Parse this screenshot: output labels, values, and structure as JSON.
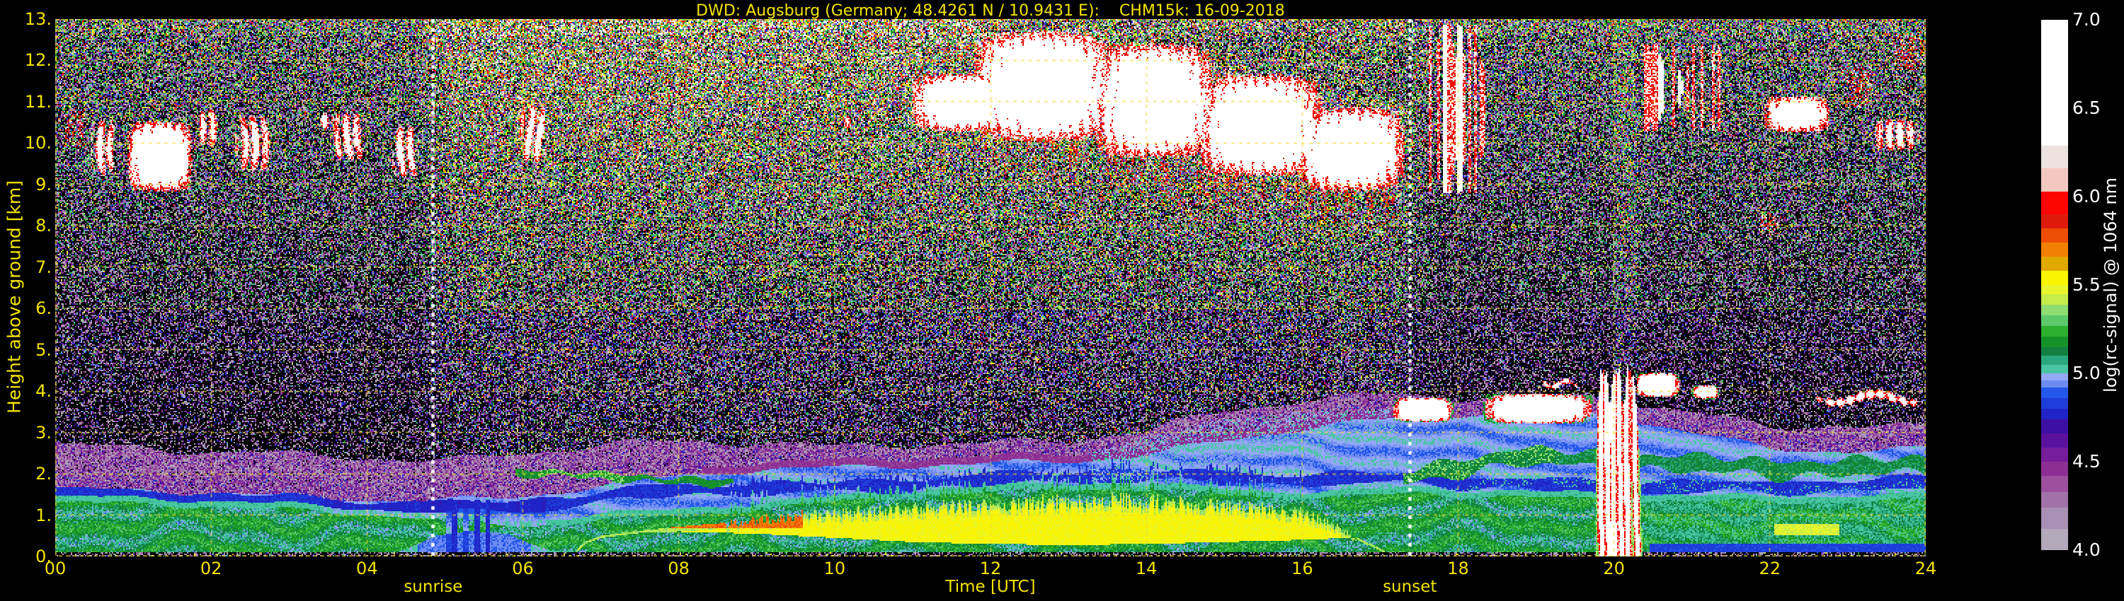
{
  "title": "DWD: Augsburg (Germany; 48.4261 N / 10.9431 E):    CHM15k: 16-09-2018",
  "style": {
    "background": "#000000",
    "label_color": "#f4e400",
    "grid_color": "rgba(238,220,50,0.85)",
    "event_line_color": "#ffffff",
    "colorbar_text_color": "#ffffff"
  },
  "chart_data": {
    "type": "heatmap",
    "title": "DWD: Augsburg (Germany; 48.4261 N / 10.9431 E):    CHM15k: 16-09-2018",
    "x": {
      "label": "Time [UTC]",
      "range": [
        0,
        24
      ],
      "ticks": [
        0,
        2,
        4,
        6,
        8,
        10,
        12,
        14,
        16,
        18,
        20,
        22,
        24
      ],
      "tick_labels": [
        "00",
        "02",
        "04",
        "06",
        "08",
        "10",
        "12",
        "14",
        "16",
        "18",
        "20",
        "22",
        "24"
      ]
    },
    "y": {
      "label": "Height above ground [km]",
      "range": [
        0,
        13
      ],
      "ticks": [
        13,
        12,
        11,
        10,
        9,
        8,
        7,
        6,
        5,
        4,
        3,
        2,
        1,
        0
      ],
      "tick_labels": [
        "13.",
        "12.",
        "11.",
        "10.",
        "9.",
        "8.",
        "7.",
        "6.",
        "5.",
        "4.",
        "3.",
        "2.",
        "1.",
        "0."
      ]
    },
    "colorbar": {
      "label": "log(rc-signal) @ 1064 nm",
      "range": [
        4.0,
        7.0
      ],
      "tick_labels": [
        "7.0",
        "6.5",
        "6.0",
        "5.5",
        "5.0",
        "4.5",
        "4.0"
      ],
      "under_color": "#000000",
      "over_color": "#ffffff",
      "stops": [
        [
          4.0,
          "#b3a9bb"
        ],
        [
          4.12,
          "#a98fb4"
        ],
        [
          4.24,
          "#a172a8"
        ],
        [
          4.33,
          "#9d509d"
        ],
        [
          4.42,
          "#8c2e93"
        ],
        [
          4.5,
          "#771c9a"
        ],
        [
          4.58,
          "#5a129e"
        ],
        [
          4.66,
          "#3d10a3"
        ],
        [
          4.74,
          "#2023c5"
        ],
        [
          4.8,
          "#1e3ddb"
        ],
        [
          4.86,
          "#2458ea"
        ],
        [
          4.92,
          "#6e8cf2"
        ],
        [
          4.96,
          "#93a8f6"
        ],
        [
          5.0,
          "#49c5a2"
        ],
        [
          5.05,
          "#2aa87d"
        ],
        [
          5.1,
          "#128042"
        ],
        [
          5.15,
          "#169328"
        ],
        [
          5.21,
          "#2eb02f"
        ],
        [
          5.27,
          "#5cc96a"
        ],
        [
          5.33,
          "#8fdc71"
        ],
        [
          5.39,
          "#c4ec4a"
        ],
        [
          5.45,
          "#e9f52b"
        ],
        [
          5.5,
          "#f9f400"
        ],
        [
          5.58,
          "#dfa900"
        ],
        [
          5.66,
          "#f28000"
        ],
        [
          5.74,
          "#ee4d06"
        ],
        [
          5.82,
          "#dd1a0c"
        ],
        [
          5.9,
          "#fc0400"
        ],
        [
          6.03,
          "#f3c8c1"
        ],
        [
          6.16,
          "#ece2e0"
        ],
        [
          6.29,
          "#ffffff"
        ]
      ]
    },
    "events": {
      "sunrise": {
        "label": "sunrise",
        "time": 4.85
      },
      "sunset": {
        "label": "sunset",
        "time": 17.38
      }
    },
    "layers": {
      "green_top": [
        [
          0,
          1.3
        ],
        [
          1,
          1.28
        ],
        [
          2,
          1.22
        ],
        [
          3,
          1.12
        ],
        [
          4,
          1.02
        ],
        [
          4.6,
          0.95
        ],
        [
          5,
          0.88
        ],
        [
          5.5,
          0.8
        ],
        [
          6,
          0.72
        ],
        [
          6.5,
          0.8
        ],
        [
          7,
          0.9
        ],
        [
          8,
          1.0
        ],
        [
          9,
          1.15
        ],
        [
          10,
          1.3
        ],
        [
          11,
          1.45
        ],
        [
          12,
          1.55
        ],
        [
          13,
          1.62
        ],
        [
          13.5,
          1.65
        ],
        [
          14,
          1.6
        ],
        [
          15,
          1.5
        ],
        [
          16,
          1.42
        ],
        [
          16.8,
          1.45
        ],
        [
          17.5,
          1.55
        ],
        [
          18,
          1.48
        ],
        [
          19,
          1.42
        ],
        [
          20,
          1.38
        ],
        [
          21,
          1.35
        ],
        [
          22,
          1.3
        ],
        [
          23,
          1.35
        ],
        [
          24,
          1.35
        ]
      ],
      "green_bottom": [
        [
          0,
          0.1
        ],
        [
          4.4,
          0.1
        ],
        [
          4.9,
          0.5
        ],
        [
          5.3,
          0.62
        ],
        [
          5.8,
          0.55
        ],
        [
          6.1,
          0.3
        ],
        [
          6.4,
          0.12
        ],
        [
          24,
          0.1
        ]
      ],
      "yellow_top": [
        [
          6.6,
          0.0
        ],
        [
          6.8,
          0.35
        ],
        [
          7,
          0.5
        ],
        [
          7.5,
          0.62
        ],
        [
          8,
          0.72
        ],
        [
          8.5,
          0.8
        ],
        [
          9,
          0.9
        ],
        [
          9.5,
          1.0
        ],
        [
          10,
          1.1
        ],
        [
          11,
          1.2
        ],
        [
          12,
          1.3
        ],
        [
          13,
          1.38
        ],
        [
          13.5,
          1.42
        ],
        [
          14,
          1.38
        ],
        [
          15,
          1.3
        ],
        [
          15.5,
          1.22
        ],
        [
          16,
          1.1
        ],
        [
          16.4,
          0.8
        ],
        [
          16.7,
          0.45
        ],
        [
          17,
          0.2
        ],
        [
          17.2,
          0.0
        ]
      ],
      "yellow_bottom": [
        [
          6.6,
          0.5
        ],
        [
          7,
          0.55
        ],
        [
          8,
          0.6
        ],
        [
          9,
          0.55
        ],
        [
          10,
          0.45
        ],
        [
          11,
          0.35
        ],
        [
          12,
          0.3
        ],
        [
          13,
          0.28
        ],
        [
          14,
          0.3
        ],
        [
          15,
          0.35
        ],
        [
          16,
          0.4
        ],
        [
          16.6,
          0.45
        ],
        [
          17.2,
          0.5
        ]
      ],
      "blue_band_offset": [
        [
          0,
          0.22
        ],
        [
          4,
          0.2
        ],
        [
          5,
          0.3
        ],
        [
          6,
          0.5
        ],
        [
          7,
          0.55
        ],
        [
          8,
          0.6
        ],
        [
          9,
          0.5
        ],
        [
          10,
          0.35
        ],
        [
          11,
          0.3
        ],
        [
          12,
          0.3
        ],
        [
          13,
          0.3
        ],
        [
          14,
          0.35
        ],
        [
          15,
          0.4
        ],
        [
          16,
          0.45
        ],
        [
          17,
          0.4
        ],
        [
          18,
          0.35
        ],
        [
          19,
          0.3
        ],
        [
          20,
          0.3
        ],
        [
          21,
          0.35
        ],
        [
          22,
          0.35
        ],
        [
          23,
          0.4
        ],
        [
          24,
          0.4
        ]
      ],
      "haze_top": [
        [
          0,
          1.65
        ],
        [
          1,
          1.6
        ],
        [
          2,
          1.55
        ],
        [
          3,
          1.45
        ],
        [
          4,
          1.38
        ],
        [
          5,
          1.35
        ],
        [
          6,
          1.45
        ],
        [
          7,
          1.7
        ],
        [
          8,
          1.95
        ],
        [
          9,
          2.1
        ],
        [
          10,
          2.15
        ],
        [
          11,
          2.2
        ],
        [
          12,
          2.25
        ],
        [
          13,
          2.3
        ],
        [
          14,
          2.45
        ],
        [
          15,
          2.8
        ],
        [
          16,
          3.1
        ],
        [
          17,
          3.3
        ],
        [
          18,
          3.45
        ],
        [
          19,
          3.5
        ],
        [
          20,
          3.4
        ],
        [
          21,
          3.0
        ],
        [
          22,
          2.6
        ],
        [
          23,
          2.55
        ],
        [
          24,
          2.6
        ]
      ],
      "purple_top": [
        [
          0,
          2.7
        ],
        [
          2,
          2.55
        ],
        [
          4,
          2.4
        ],
        [
          5,
          2.3
        ],
        [
          6,
          2.5
        ],
        [
          7,
          2.7
        ],
        [
          8,
          2.8
        ],
        [
          9,
          2.75
        ],
        [
          10,
          2.65
        ],
        [
          11,
          2.7
        ],
        [
          12,
          2.75
        ],
        [
          13,
          2.8
        ],
        [
          14,
          3.05
        ],
        [
          15,
          3.5
        ],
        [
          16,
          3.8
        ],
        [
          17,
          3.9
        ],
        [
          18,
          3.85
        ],
        [
          19,
          3.9
        ],
        [
          20,
          3.8
        ],
        [
          21,
          3.5
        ],
        [
          22,
          3.1
        ],
        [
          23,
          3.2
        ],
        [
          24,
          3.1
        ]
      ],
      "upper_green_center": [
        [
          17.3,
          1.9
        ],
        [
          18,
          2.2
        ],
        [
          18.7,
          2.4
        ],
        [
          19.5,
          2.35
        ],
        [
          20.6,
          2.3
        ],
        [
          21,
          2.25
        ],
        [
          22,
          2.1
        ],
        [
          23,
          2.2
        ],
        [
          24,
          2.15
        ]
      ],
      "residual_green_line": [
        [
          5.9,
          2.0
        ],
        [
          6.3,
          2.02
        ],
        [
          6.8,
          1.98
        ],
        [
          7.3,
          1.9
        ],
        [
          7.8,
          1.85
        ],
        [
          8.3,
          1.8
        ],
        [
          8.7,
          1.78
        ]
      ],
      "elevated_plume_top": [
        [
          13.3,
          2.5
        ],
        [
          14,
          2.9
        ],
        [
          15,
          3.3
        ],
        [
          16,
          3.5
        ],
        [
          17.2,
          3.55
        ]
      ],
      "cloud_top_attenuation": [
        [
          11.9,
          12.4
        ],
        [
          13,
          12.5
        ],
        [
          14,
          12.2
        ],
        [
          15,
          11.6
        ],
        [
          16,
          11.2
        ],
        [
          17,
          10.8
        ],
        [
          17.4,
          10.6
        ]
      ],
      "cloud_base_virga": [
        [
          11.9,
          10.4
        ],
        [
          13,
          10.0
        ],
        [
          14,
          9.6
        ],
        [
          15,
          9.25
        ],
        [
          16,
          9.0
        ],
        [
          17.35,
          8.75
        ]
      ],
      "crimson_window": [
        8.3,
        17.5
      ],
      "orange_core": {
        "t": [
          7.6,
          9.6
        ],
        "h": [
          0.7,
          1.2
        ]
      },
      "late_yellow_patch": {
        "t": [
          22.05,
          22.9
        ],
        "h": [
          0.5,
          0.8
        ]
      },
      "fog_streaks": {
        "t": [
          5.02,
          5.58
        ],
        "h_max": 1.38
      }
    },
    "clouds": [
      {
        "t": [
          0.08,
          0.42
        ],
        "h": [
          9.8,
          10.95
        ],
        "type": "specks",
        "d": 0.5,
        "seed": 1
      },
      {
        "t": [
          0.45,
          0.78
        ],
        "h": [
          9.2,
          10.6
        ],
        "type": "streak",
        "d": 0.85,
        "seed": 2
      },
      {
        "t": [
          0.9,
          1.78
        ],
        "h": [
          8.8,
          10.55
        ],
        "type": "mass",
        "d": 1.0,
        "seed": 3
      },
      {
        "t": [
          1.82,
          2.12
        ],
        "h": [
          9.9,
          10.85
        ],
        "type": "streak",
        "d": 0.75,
        "seed": 4
      },
      {
        "t": [
          2.3,
          2.8
        ],
        "h": [
          9.3,
          10.7
        ],
        "type": "streak",
        "d": 0.8,
        "seed": 5
      },
      {
        "t": [
          3.35,
          3.6
        ],
        "h": [
          10.3,
          10.75
        ],
        "type": "streak",
        "d": 0.55,
        "seed": 6
      },
      {
        "t": [
          3.55,
          3.98
        ],
        "h": [
          9.55,
          10.75
        ],
        "type": "streak",
        "d": 0.85,
        "seed": 7
      },
      {
        "t": [
          4.3,
          4.68
        ],
        "h": [
          9.15,
          10.45
        ],
        "type": "streak",
        "d": 0.8,
        "seed": 8
      },
      {
        "t": [
          5.95,
          6.32
        ],
        "h": [
          9.5,
          10.95
        ],
        "type": "streak",
        "d": 0.9,
        "seed": 9
      },
      {
        "t": [
          10.05,
          10.25
        ],
        "h": [
          10.35,
          10.65
        ],
        "type": "streak",
        "d": 0.5,
        "seed": 10
      },
      {
        "t": [
          10.95,
          12.3
        ],
        "h": [
          10.25,
          11.7
        ],
        "type": "mass",
        "d": 0.9,
        "seed": 11
      },
      {
        "t": [
          11.75,
          13.6
        ],
        "h": [
          10.0,
          12.75
        ],
        "type": "mass",
        "d": 1.0,
        "seed": 12
      },
      {
        "t": [
          13.3,
          14.9
        ],
        "h": [
          9.6,
          12.45
        ],
        "type": "mass",
        "d": 1.0,
        "seed": 13
      },
      {
        "t": [
          14.6,
          16.3
        ],
        "h": [
          9.15,
          11.7
        ],
        "type": "mass",
        "d": 0.95,
        "seed": 14
      },
      {
        "t": [
          15.9,
          17.35
        ],
        "h": [
          8.8,
          10.9
        ],
        "type": "mass",
        "d": 0.95,
        "seed": 15
      },
      {
        "t": [
          17.38,
          18.48
        ],
        "h": [
          8.8,
          12.85
        ],
        "type": "vstreaks",
        "d": 0.75,
        "seed": 16,
        "strong": [
          17.81,
          18.02
        ]
      },
      {
        "t": [
          20.35,
          21.4
        ],
        "h": [
          10.3,
          12.4
        ],
        "type": "vstreaks",
        "d": 0.85,
        "seed": 17,
        "strong": [
          20.62,
          20.85
        ]
      },
      {
        "t": [
          21.9,
          22.8
        ],
        "h": [
          10.25,
          11.15
        ],
        "type": "mass",
        "d": 0.85,
        "seed": 18
      },
      {
        "t": [
          22.9,
          23.35
        ],
        "h": [
          10.8,
          11.95
        ],
        "type": "specks",
        "d": 0.55,
        "seed": 19
      },
      {
        "t": [
          23.3,
          23.95
        ],
        "h": [
          9.8,
          10.6
        ],
        "type": "streak",
        "d": 0.8,
        "seed": 20
      },
      {
        "t": [
          21.85,
          22.15
        ],
        "h": [
          7.75,
          8.35
        ],
        "type": "specks",
        "d": 0.45,
        "seed": 21
      },
      {
        "t": [
          23.55,
          24.0
        ],
        "h": [
          11.7,
          12.7
        ],
        "type": "specks",
        "d": 0.5,
        "seed": 22
      },
      {
        "t": [
          17.15,
          17.95
        ],
        "h": [
          3.25,
          3.85
        ],
        "type": "cu",
        "d": 0.9,
        "seed": 23
      },
      {
        "t": [
          18.3,
          19.75
        ],
        "h": [
          3.2,
          3.95
        ],
        "type": "cu",
        "d": 0.8,
        "seed": 24
      },
      {
        "t": [
          20.28,
          20.85
        ],
        "h": [
          3.85,
          4.45
        ],
        "type": "cu",
        "d": 0.95,
        "seed": 25
      },
      {
        "t": [
          21.0,
          21.35
        ],
        "h": [
          3.8,
          4.15
        ],
        "type": "cu",
        "d": 0.6,
        "seed": 26
      },
      {
        "t": [
          19.05,
          19.55
        ],
        "h": [
          4.0,
          4.35
        ],
        "type": "line",
        "d": 0.65,
        "seed": 27
      },
      {
        "t": [
          22.55,
          24.0
        ],
        "h": [
          3.55,
          4.1
        ],
        "type": "line",
        "d": 0.7,
        "seed": 28
      }
    ],
    "rain": {
      "t": [
        19.74,
        20.36
      ],
      "h_top": 4.45,
      "shafts": [
        [
          19.83,
          0.05,
          0.6
        ],
        [
          19.91,
          0.055,
          1.2
        ],
        [
          19.99,
          0.06,
          0.5
        ],
        [
          20.07,
          0.05,
          1.5
        ],
        [
          20.16,
          0.055,
          0.9
        ],
        [
          20.26,
          0.045,
          2.0
        ]
      ]
    },
    "noise": {
      "base": 3.52,
      "height_gain": 1.02,
      "day_gain": [
        0.2,
        0.5
      ],
      "sigma_base": 0.55,
      "sigma_height": 0.2,
      "sigma_day": 0.15
    }
  }
}
